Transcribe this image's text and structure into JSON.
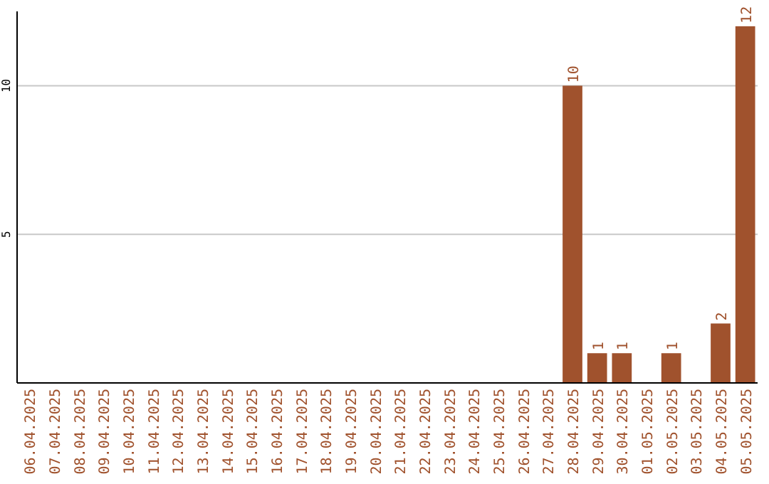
{
  "chart_data": {
    "type": "bar",
    "categories": [
      "06.04.2025",
      "07.04.2025",
      "08.04.2025",
      "09.04.2025",
      "10.04.2025",
      "11.04.2025",
      "12.04.2025",
      "13.04.2025",
      "14.04.2025",
      "15.04.2025",
      "16.04.2025",
      "17.04.2025",
      "18.04.2025",
      "19.04.2025",
      "20.04.2025",
      "21.04.2025",
      "22.04.2025",
      "23.04.2025",
      "24.04.2025",
      "25.04.2025",
      "26.04.2025",
      "27.04.2025",
      "28.04.2025",
      "29.04.2025",
      "30.04.2025",
      "01.05.2025",
      "02.05.2025",
      "03.05.2025",
      "04.05.2025",
      "05.05.2025"
    ],
    "values": [
      0,
      0,
      0,
      0,
      0,
      0,
      0,
      0,
      0,
      0,
      0,
      0,
      0,
      0,
      0,
      0,
      0,
      0,
      0,
      0,
      0,
      0,
      10,
      1,
      1,
      0,
      1,
      0,
      2,
      12
    ],
    "value_labels": [
      null,
      null,
      null,
      null,
      null,
      null,
      null,
      null,
      null,
      null,
      null,
      null,
      null,
      null,
      null,
      null,
      null,
      null,
      null,
      null,
      null,
      null,
      "10",
      "1",
      "1",
      null,
      "1",
      null,
      "2",
      "12"
    ],
    "color": "#a0522d",
    "ylim": [
      0,
      12.5
    ],
    "yticks": [
      5,
      10
    ],
    "grid": "y"
  }
}
